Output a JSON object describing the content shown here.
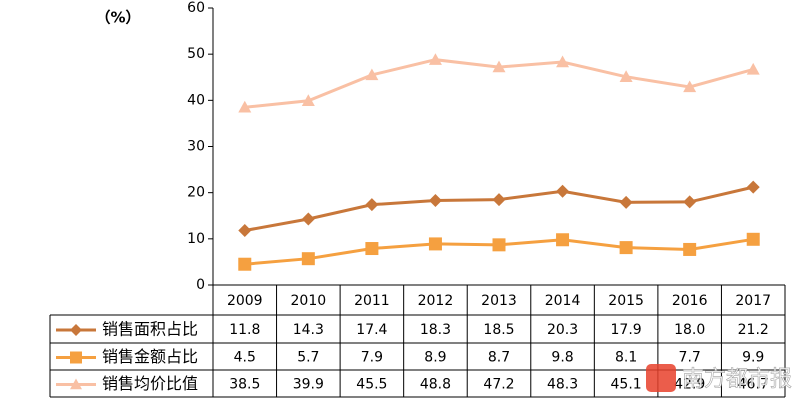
{
  "chart_data": {
    "type": "line",
    "y_label": "（%）",
    "categories": [
      "2009",
      "2010",
      "2011",
      "2012",
      "2013",
      "2014",
      "2015",
      "2016",
      "2017"
    ],
    "series": [
      {
        "name": "销售面积占比",
        "color": "#c8773a",
        "marker": "diamond",
        "values": [
          11.8,
          14.3,
          17.4,
          18.3,
          18.5,
          20.3,
          17.9,
          18.0,
          21.2
        ],
        "value_labels": [
          "11.8",
          "14.3",
          "17.4",
          "18.3",
          "18.5",
          "20.3",
          "17.9",
          "18.0",
          "21.2"
        ]
      },
      {
        "name": "销售金额占比",
        "color": "#f5a040",
        "marker": "square",
        "values": [
          4.5,
          5.7,
          7.9,
          8.9,
          8.7,
          9.8,
          8.1,
          7.7,
          9.9
        ],
        "value_labels": [
          "4.5",
          "5.7",
          "7.9",
          "8.9",
          "8.7",
          "9.8",
          "8.1",
          "7.7",
          "9.9"
        ]
      },
      {
        "name": "销售均价比值",
        "color": "#f9c0a4",
        "marker": "triangle",
        "values": [
          38.5,
          39.9,
          45.5,
          48.8,
          47.2,
          48.3,
          45.1,
          42.9,
          46.7
        ],
        "value_labels": [
          "38.5",
          "39.9",
          "45.5",
          "48.8",
          "47.2",
          "48.3",
          "45.1",
          "42.9",
          "46.7"
        ]
      }
    ],
    "ylim": [
      0,
      60
    ],
    "yticks": [
      0,
      10,
      20,
      30,
      40,
      50,
      60
    ],
    "watermark": "南方都市报"
  }
}
